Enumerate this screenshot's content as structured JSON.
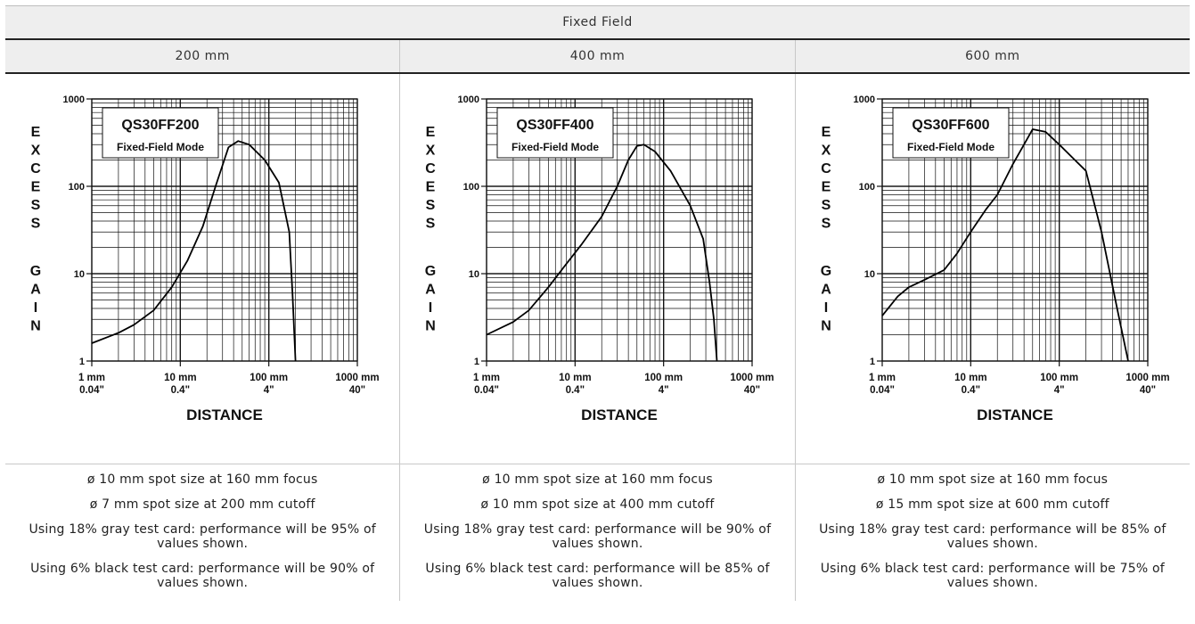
{
  "table": {
    "title": "Fixed Field",
    "columns": [
      {
        "header": "200 mm",
        "notes": [
          "ø 10 mm spot size at 160 mm focus",
          "ø 7 mm spot size at 200 mm cutoff",
          "Using 18% gray test card: performance will be 95% of values shown.",
          "Using 6% black test card: performance will be 90% of values shown."
        ]
      },
      {
        "header": "400 mm",
        "notes": [
          "ø 10 mm spot size at 160 mm focus",
          "ø 10 mm spot size at 400 mm cutoff",
          "Using 18% gray test card: performance will be 90% of values shown.",
          "Using 6% black test card: performance will be 85% of values shown."
        ]
      },
      {
        "header": "600 mm",
        "notes": [
          "ø 10 mm spot size at 160 mm focus",
          "ø 15 mm spot size at 600 mm cutoff",
          "Using 18% gray test card: performance will be 85% of values shown.",
          "Using 6% black test card: performance will be 75% of values shown."
        ]
      }
    ]
  },
  "chart_data": [
    {
      "type": "line",
      "title": "QS30FF200",
      "subtitle": "Fixed-Field Mode",
      "xlabel": "DISTANCE",
      "ylabel": "EXCESS GAIN",
      "xscale": "log",
      "yscale": "log",
      "xlim": [
        1,
        1000
      ],
      "ylim": [
        1,
        1000
      ],
      "xticks": [
        {
          "v": 1,
          "l1": "1 mm",
          "l2": "0.04\""
        },
        {
          "v": 10,
          "l1": "10 mm",
          "l2": "0.4\""
        },
        {
          "v": 100,
          "l1": "100 mm",
          "l2": "4\""
        },
        {
          "v": 1000,
          "l1": "1000 mm",
          "l2": "40\""
        }
      ],
      "yticks": [
        {
          "v": 1,
          "l": "1"
        },
        {
          "v": 10,
          "l": "10"
        },
        {
          "v": 100,
          "l": "100"
        },
        {
          "v": 1000,
          "l": "1000"
        }
      ],
      "grid": true,
      "series": [
        {
          "x": [
            1,
            2,
            3,
            5,
            8,
            12,
            18,
            25,
            35,
            45,
            60,
            90,
            130,
            170,
            185,
            200
          ],
          "y": [
            1.6,
            2.1,
            2.6,
            3.8,
            7,
            14,
            35,
            100,
            280,
            330,
            300,
            200,
            110,
            30,
            6,
            1
          ]
        }
      ]
    },
    {
      "type": "line",
      "title": "QS30FF400",
      "subtitle": "Fixed-Field Mode",
      "xlabel": "DISTANCE",
      "ylabel": "EXCESS GAIN",
      "xscale": "log",
      "yscale": "log",
      "xlim": [
        1,
        1000
      ],
      "ylim": [
        1,
        1000
      ],
      "xticks": [
        {
          "v": 1,
          "l1": "1 mm",
          "l2": "0.04\""
        },
        {
          "v": 10,
          "l1": "10 mm",
          "l2": "0.4\""
        },
        {
          "v": 100,
          "l1": "100 mm",
          "l2": "4\""
        },
        {
          "v": 1000,
          "l1": "1000 mm",
          "l2": "40\""
        }
      ],
      "yticks": [
        {
          "v": 1,
          "l": "1"
        },
        {
          "v": 10,
          "l": "10"
        },
        {
          "v": 100,
          "l": "100"
        },
        {
          "v": 1000,
          "l": "1000"
        }
      ],
      "grid": true,
      "series": [
        {
          "x": [
            1,
            2,
            3,
            5,
            8,
            12,
            20,
            30,
            40,
            50,
            60,
            80,
            120,
            200,
            280,
            330,
            370,
            400
          ],
          "y": [
            2,
            2.8,
            3.8,
            7,
            13,
            22,
            45,
            100,
            200,
            290,
            300,
            250,
            150,
            60,
            25,
            8,
            3,
            1
          ]
        }
      ]
    },
    {
      "type": "line",
      "title": "QS30FF600",
      "subtitle": "Fixed-Field Mode",
      "xlabel": "DISTANCE",
      "ylabel": "EXCESS GAIN",
      "xscale": "log",
      "yscale": "log",
      "xlim": [
        1,
        1000
      ],
      "ylim": [
        1,
        1000
      ],
      "xticks": [
        {
          "v": 1,
          "l1": "1 mm",
          "l2": "0.04\""
        },
        {
          "v": 10,
          "l1": "10 mm",
          "l2": "0.4\""
        },
        {
          "v": 100,
          "l1": "100 mm",
          "l2": "4\""
        },
        {
          "v": 1000,
          "l1": "1000 mm",
          "l2": "40\""
        }
      ],
      "yticks": [
        {
          "v": 1,
          "l": "1"
        },
        {
          "v": 10,
          "l": "10"
        },
        {
          "v": 100,
          "l": "100"
        },
        {
          "v": 1000,
          "l": "1000"
        }
      ],
      "grid": true,
      "series": [
        {
          "x": [
            1,
            1.5,
            2,
            3,
            5,
            7,
            10,
            15,
            20,
            30,
            40,
            50,
            70,
            100,
            150,
            200,
            300,
            450,
            600
          ],
          "y": [
            3.3,
            5.5,
            7,
            8.5,
            11,
            17,
            30,
            55,
            80,
            180,
            300,
            450,
            420,
            300,
            200,
            150,
            30,
            4,
            1
          ]
        }
      ]
    }
  ]
}
